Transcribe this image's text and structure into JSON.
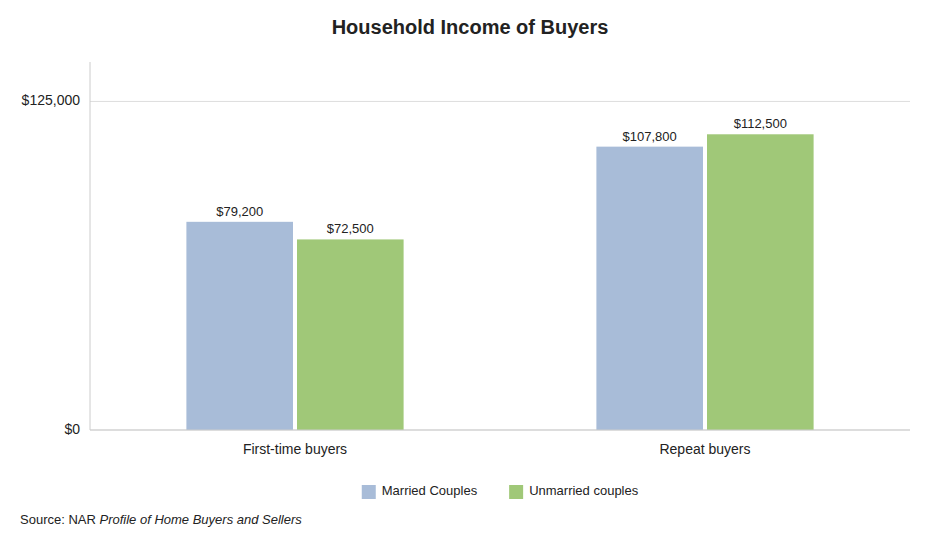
{
  "chart_data": {
    "type": "bar",
    "title": "Household Income of Buyers",
    "categories": [
      "First-time buyers",
      "Repeat buyers"
    ],
    "series": [
      {
        "name": "Married Couples",
        "color": "#a8bcd8",
        "values": [
          79200,
          107800
        ],
        "value_labels": [
          "$79,200",
          "$107,800"
        ]
      },
      {
        "name": "Unmarried couples",
        "color": "#a0c878",
        "values": [
          72500,
          112500
        ],
        "value_labels": [
          "$72,500",
          "$112,500"
        ]
      }
    ],
    "ylim": [
      0,
      140000
    ],
    "yticks": [
      {
        "value": 0,
        "label": "$0"
      },
      {
        "value": 125000,
        "label": "$125,000"
      }
    ],
    "grid": true,
    "data_labels": true,
    "legend": "bottom",
    "annotations": [
      "Source: NAR ",
      "Profile of Home Buyers and Sellers"
    ]
  }
}
